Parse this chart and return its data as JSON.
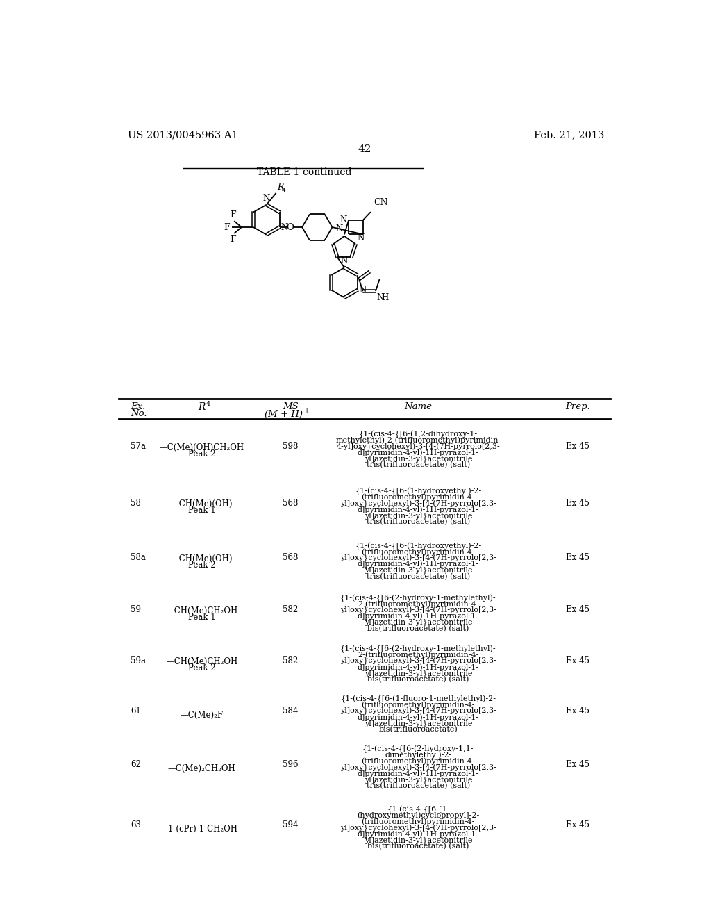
{
  "patent_number": "US 2013/0045963 A1",
  "date": "Feb. 21, 2013",
  "page_number": "42",
  "table_title": "TABLE 1-continued",
  "rows": [
    {
      "ex": "57a",
      "r4": "—C(Me)(OH)CH₂OH\nPeak 2",
      "ms": "598",
      "name": "{1-(cis-4-{[6-(1,2-dihydroxy-1-\nmethylethyl)-2-(trifluoromethyl)pyrimidin-\n4-yl]oxy}cyclohexyl)-3-[4-(7H-pyrrolo[2,3-\nd]pyrimidin-4-yl)-1H-pyrazol-1-\nyl]azetidin-3-yl}acetonitrile\ntris(trifluoroacetate) (salt)",
      "prep": "Ex 45"
    },
    {
      "ex": "58",
      "r4": "—CH(Me)(OH)\nPeak 1",
      "ms": "568",
      "name": "{1-(cis-4-{[6-(1-hydroxyethyl)-2-\n(trifluoromethyl)pyrimidin-4-\nyl]oxy}cyclohexyl)-3-[4-(7H-pyrrolo[2,3-\nd]pyrimidin-4-yl)-1H-pyrazol-1-\nyl]azetidin-3-yl}acetonitrile\ntris(trifluoroacetate) (salt)",
      "prep": "Ex 45"
    },
    {
      "ex": "58a",
      "r4": "—CH(Me)(OH)\nPeak 2",
      "ms": "568",
      "name": "{1-(cis-4-{[6-(1-hydroxyethyl)-2-\n(trifluoromethyl)pyrimidin-4-\nyl]oxy}cyclohexyl)-3-[4-(7H-pyrrolo[2,3-\nd]pyrimidin-4-yl)-1H-pyrazol-1-\nyl]azetidin-3-yl}acetonitrile\ntris(trifluoroacetate) (salt)",
      "prep": "Ex 45"
    },
    {
      "ex": "59",
      "r4": "—CH(Me)CH₂OH\nPeak 1",
      "ms": "582",
      "name": "{1-(cis-4-{[6-(2-hydroxy-1-methylethyl)-\n2-(trifluoromethyl)pyrimidin-4-\nyl]oxy}cyclohexyl)-3-[4-(7H-pyrrolo[2,3-\nd]pyrimidin-4-yl)-1H-pyrazol-1-\nyl]azetidin-3-yl}acetonitrile\nbis(trifluoroacetate) (salt)",
      "prep": "Ex 45"
    },
    {
      "ex": "59a",
      "r4": "—CH(Me)CH₂OH\nPeak 2",
      "ms": "582",
      "name": "{1-(cis-4-{[6-(2-hydroxy-1-methylethyl)-\n2-(trifluoromethyl)pyrimidin-4-\nyl]oxy}cyclohexyl)-3-[4-(7H-pyrrolo[2,3-\nd]pyrimidin-4-yl)-1H-pyrazol-1-\nyl]azetidin-3-yl}acetonitrile\nbis(trifluoroacetate) (salt)",
      "prep": "Ex 45"
    },
    {
      "ex": "61",
      "r4": "—C(Me)₂F",
      "ms": "584",
      "name": "{1-(cis-4-{[6-(1-fluoro-1-methylethyl)-2-\n(trifluoromethyl)pyrimidin-4-\nyl]oxy}cyclohexyl)-3-[4-(7H-pyrrolo[2,3-\nd]pyrimidin-4-yl)-1H-pyrazol-1-\nyl]azetidin-3-yl}acetonitrile\nbis(trifluoroacetate)",
      "prep": "Ex 45"
    },
    {
      "ex": "62",
      "r4": "—C(Me)₂CH₂OH",
      "ms": "596",
      "name": "{1-(cis-4-{[6-(2-hydroxy-1,1-\ndimethylethyl)-2-\n(trifluoromethyl)pyrimidin-4-\nyl]oxy}cyclohexyl)-3-[4-(7H-pyrrolo[2,3-\nd]pyrimidin-4-yl)-1H-pyrazol-1-\nyl]azetidin-3-yl}acetonitrile\ntris(trifluoroacetate) (salt)",
      "prep": "Ex 45"
    },
    {
      "ex": "63",
      "r4": "-1-(cPr)-1-CH₂OH",
      "ms": "594",
      "name": "{1-(cis-4-{[6-[1-\n(hydroxymethyl)cyclopropyl]-2-\n(trifluoromethyl)pyrimidin-4-\nyl]oxy}cyclohexyl)-3-[4-(7H-pyrrolo[2,3-\nd]pyrimidin-4-yl)-1H-pyrazol-1-\nyl]azetidin-3-yl}acetonitrile\nbis(trifluoroacetate) (salt)",
      "prep": "Ex 45"
    }
  ],
  "bg_color": "#ffffff",
  "text_color": "#000000",
  "line_color": "#000000"
}
